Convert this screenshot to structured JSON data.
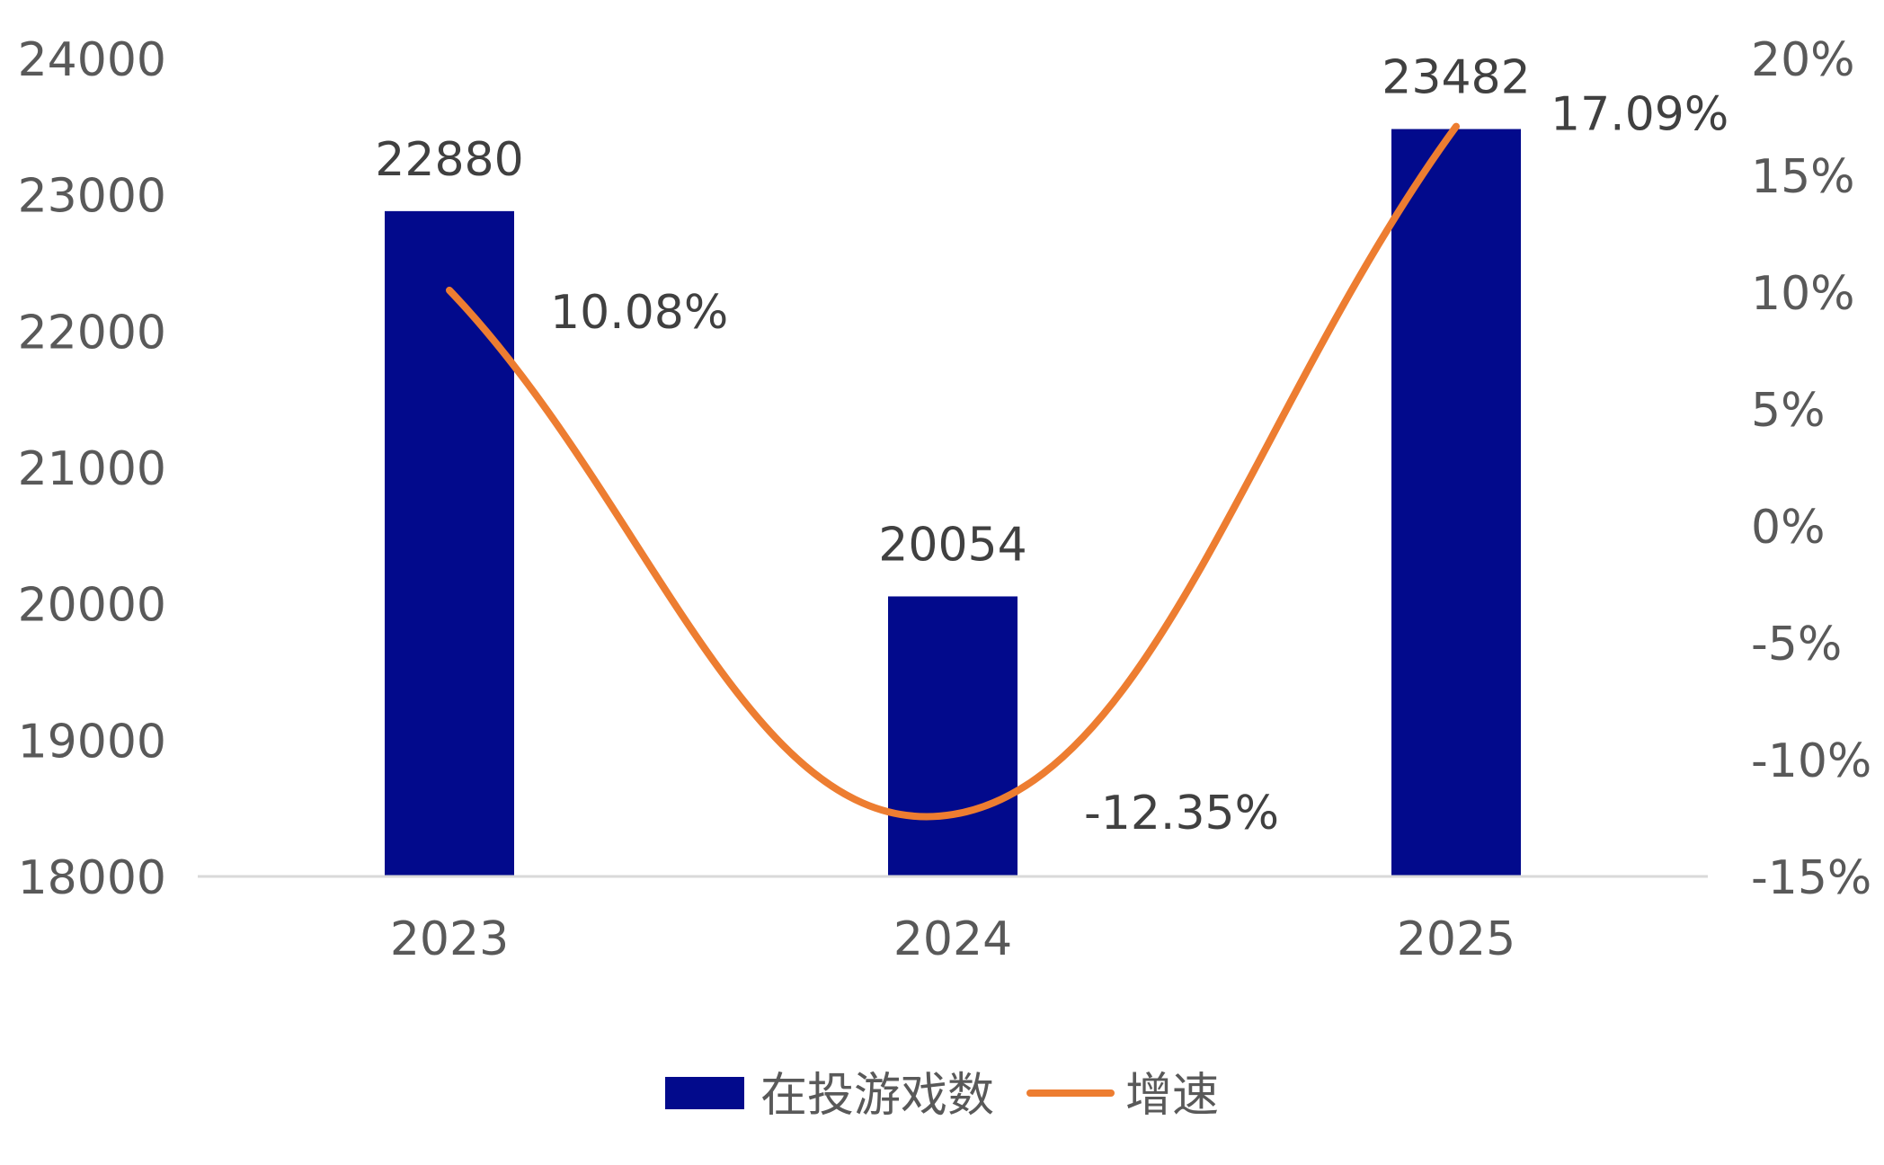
{
  "chart_data": {
    "type": "bar",
    "categories": [
      "2023",
      "2024",
      "2025"
    ],
    "series": [
      {
        "name": "在投游戏数",
        "type": "bar",
        "axis": "left",
        "values": [
          22880,
          20054,
          23482
        ],
        "labels": [
          "22880",
          "20054",
          "23482"
        ],
        "color": "#020A8C"
      },
      {
        "name": "增速",
        "type": "line",
        "axis": "right",
        "values": [
          10.08,
          -12.35,
          17.09
        ],
        "labels": [
          "10.08%",
          "-12.35%",
          "17.09%"
        ],
        "color": "#ED7D31"
      }
    ],
    "y_left": {
      "min": 18000,
      "max": 24000,
      "ticks": [
        "18000",
        "19000",
        "20000",
        "21000",
        "22000",
        "23000",
        "24000"
      ]
    },
    "y_right": {
      "min": -15,
      "max": 20,
      "ticks": [
        "-15%",
        "-10%",
        "-5%",
        "0%",
        "5%",
        "10%",
        "15%",
        "20%"
      ]
    },
    "grid": false,
    "legend_position": "bottom"
  }
}
